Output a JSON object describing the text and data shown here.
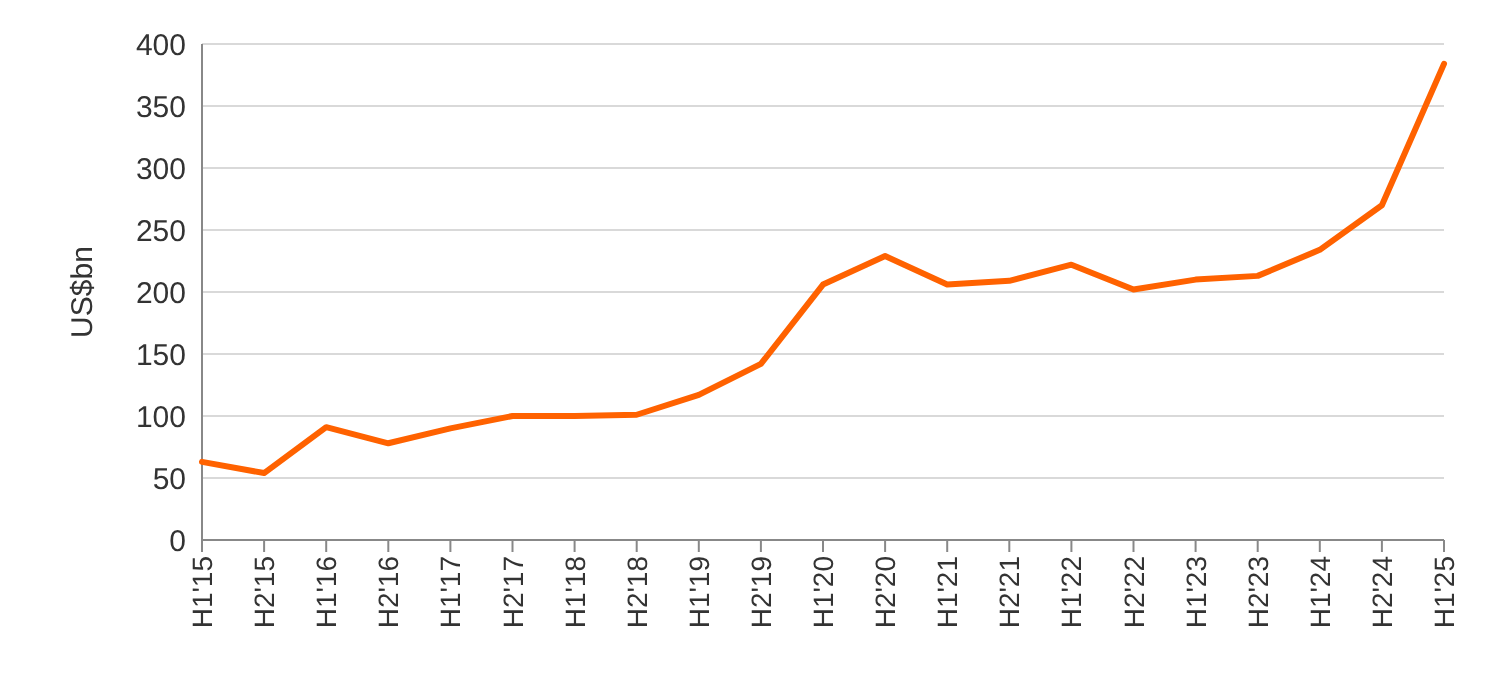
{
  "chart_data": {
    "type": "line",
    "ylabel": "US$bn",
    "categories": [
      "H1'15",
      "H2'15",
      "H1'16",
      "H2'16",
      "H1'17",
      "H2'17",
      "H1'18",
      "H2'18",
      "H1'19",
      "H2'19",
      "H1'20",
      "H2'20",
      "H1'21",
      "H2'21",
      "H1'22",
      "H2'22",
      "H1'23",
      "H2'23",
      "H1'24",
      "H2'24",
      "H1'25"
    ],
    "series": [
      {
        "color": "#ff6200",
        "values": [
          63,
          54,
          91,
          78,
          90,
          100,
          100,
          101,
          117,
          142,
          206,
          229,
          206,
          209,
          222,
          202,
          210,
          213,
          234,
          270,
          384
        ]
      }
    ],
    "ylim": [
      0,
      400
    ],
    "yticks": [
      0,
      50,
      100,
      150,
      200,
      250,
      300,
      350,
      400
    ],
    "grid": "y",
    "marker": "none",
    "line_style": "solid"
  }
}
